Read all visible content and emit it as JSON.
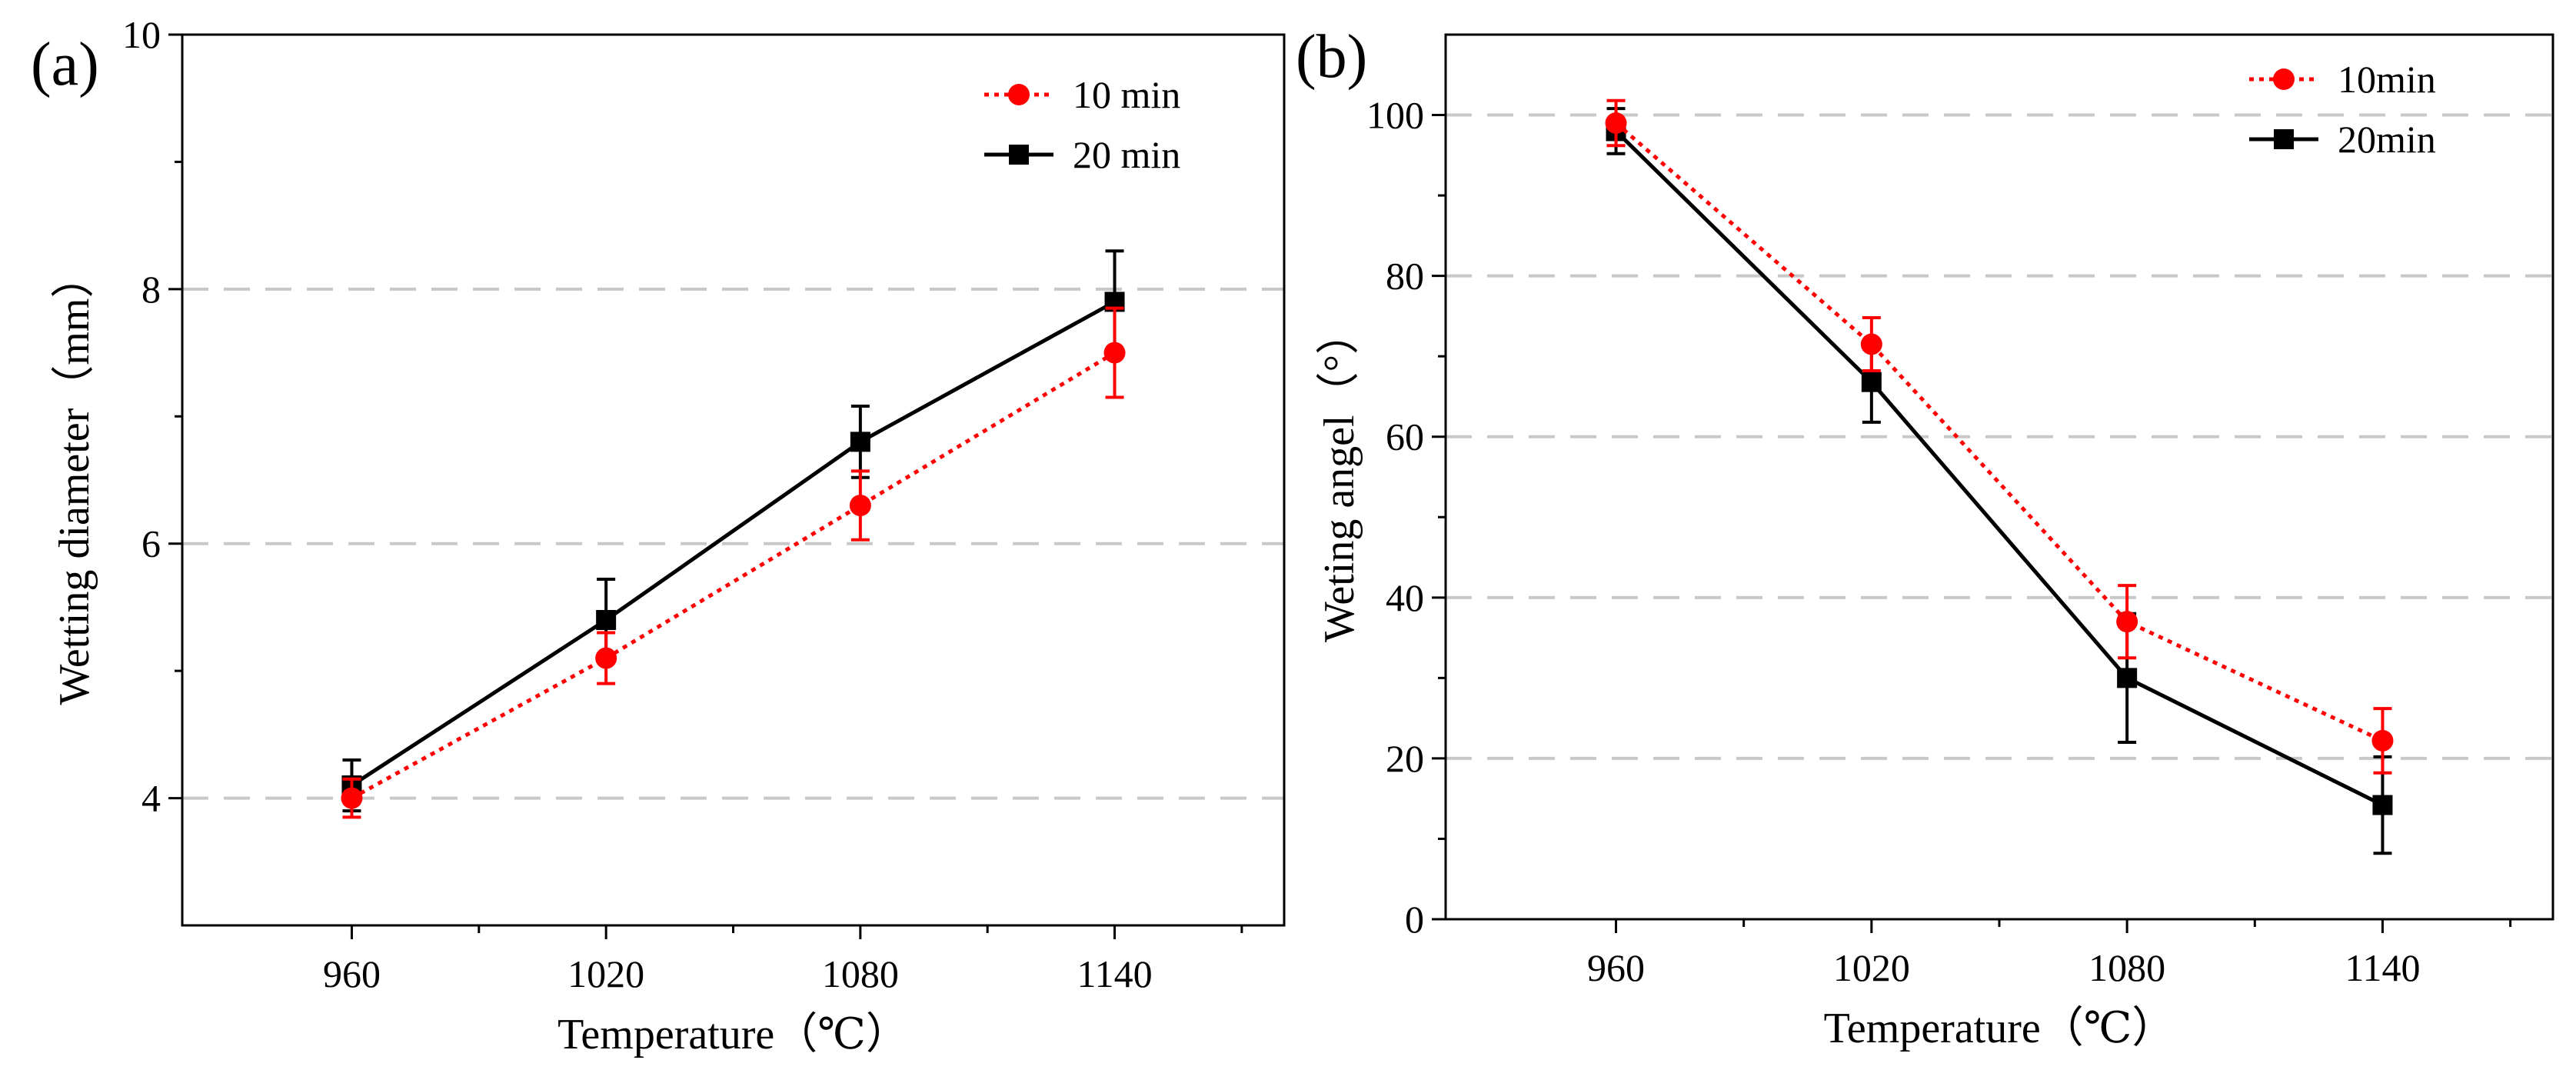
{
  "chart_data": [
    {
      "panel_label": "(a)",
      "type": "line",
      "xlabel": "Temperature（℃）",
      "ylabel": "Wetting diameter（mm）",
      "x": [
        960,
        1020,
        1080,
        1140
      ],
      "x_ticks": [
        "960",
        "1020",
        "1080",
        "1140"
      ],
      "xlim": [
        920,
        1180
      ],
      "ylim": [
        3,
        10
      ],
      "y_ticks": [
        "4",
        "6",
        "8",
        "10"
      ],
      "y_tick_values": [
        4,
        6,
        8,
        10
      ],
      "gridlines_y": [
        4,
        6,
        8
      ],
      "grid": "horizontal dashed",
      "legend_position": "top-right",
      "series": [
        {
          "name": "10 min",
          "marker": "circle",
          "line": "dotted",
          "color": "#ff0000",
          "values": [
            4.0,
            5.1,
            6.3,
            7.5
          ],
          "errors": [
            0.15,
            0.2,
            0.27,
            0.35
          ]
        },
        {
          "name": "20 min",
          "marker": "square",
          "line": "solid",
          "color": "#000000",
          "values": [
            4.1,
            5.4,
            6.8,
            7.9
          ],
          "errors": [
            0.2,
            0.32,
            0.28,
            0.4
          ]
        }
      ]
    },
    {
      "panel_label": "(b)",
      "type": "line",
      "xlabel": "Temperature（℃）",
      "ylabel": "Weting angel（°）",
      "x": [
        960,
        1020,
        1080,
        1140
      ],
      "x_ticks": [
        "960",
        "1020",
        "1080",
        "1140"
      ],
      "xlim": [
        920,
        1180
      ],
      "ylim": [
        0,
        110
      ],
      "y_ticks": [
        "0",
        "20",
        "40",
        "60",
        "80",
        "100"
      ],
      "y_tick_values": [
        0,
        20,
        40,
        60,
        80,
        100
      ],
      "gridlines_y": [
        20,
        40,
        60,
        80,
        100
      ],
      "grid": "horizontal dashed",
      "legend_position": "top-right",
      "series": [
        {
          "name": "10min",
          "marker": "circle",
          "line": "dotted",
          "color": "#ff0000",
          "values": [
            99,
            71.5,
            37,
            22.2
          ],
          "errors": [
            2.8,
            3.3,
            4.5,
            4.0
          ]
        },
        {
          "name": "20min",
          "marker": "square",
          "line": "solid",
          "color": "#000000",
          "values": [
            98,
            66.8,
            30,
            14.2
          ],
          "errors": [
            2.8,
            5.0,
            8.0,
            6.0
          ]
        }
      ]
    }
  ]
}
